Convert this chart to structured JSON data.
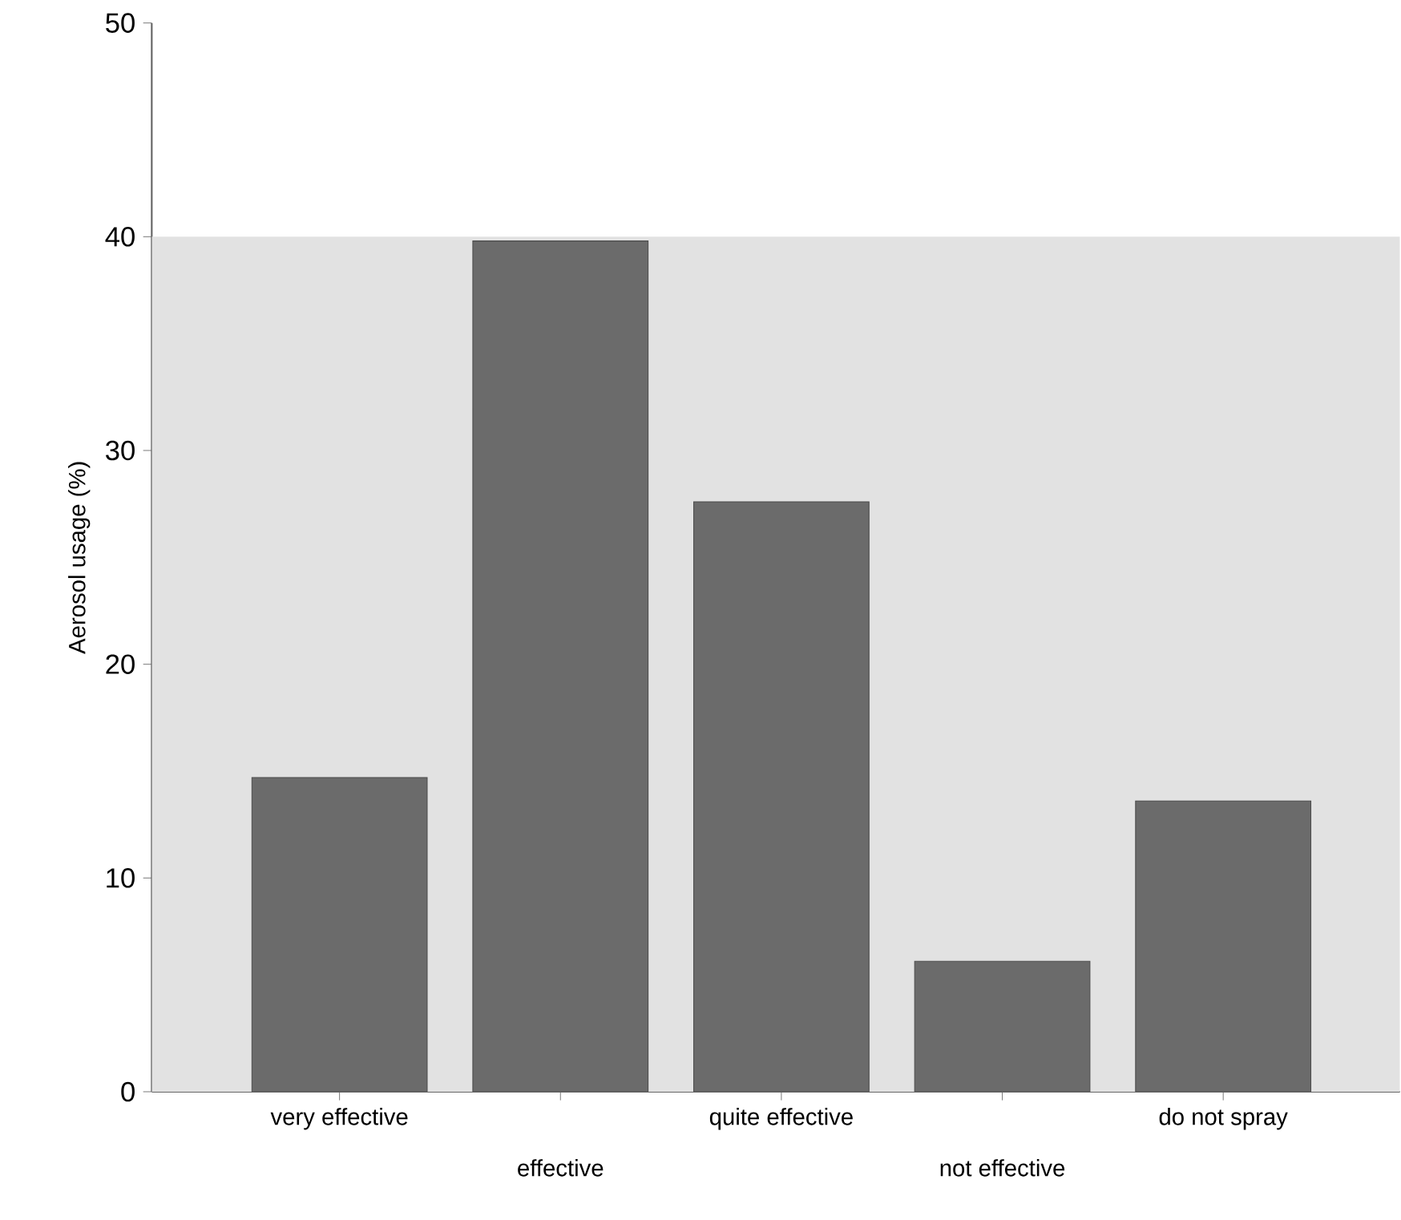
{
  "chart_data": {
    "type": "bar",
    "ylabel": "Aerosol usage (%)",
    "categories": [
      "very effective",
      "effective",
      "quite effective",
      "not effective",
      "do not spray"
    ],
    "values": [
      14.7,
      39.8,
      27.6,
      6.1,
      13.6
    ],
    "color": "#6b6b6b",
    "ylim": [
      0,
      50
    ],
    "yticks": [
      0,
      10,
      20,
      30,
      40,
      50
    ],
    "bands": [
      {
        "axis": "y",
        "from": 0,
        "to": 40,
        "color": "#e2e2e2"
      }
    ]
  }
}
